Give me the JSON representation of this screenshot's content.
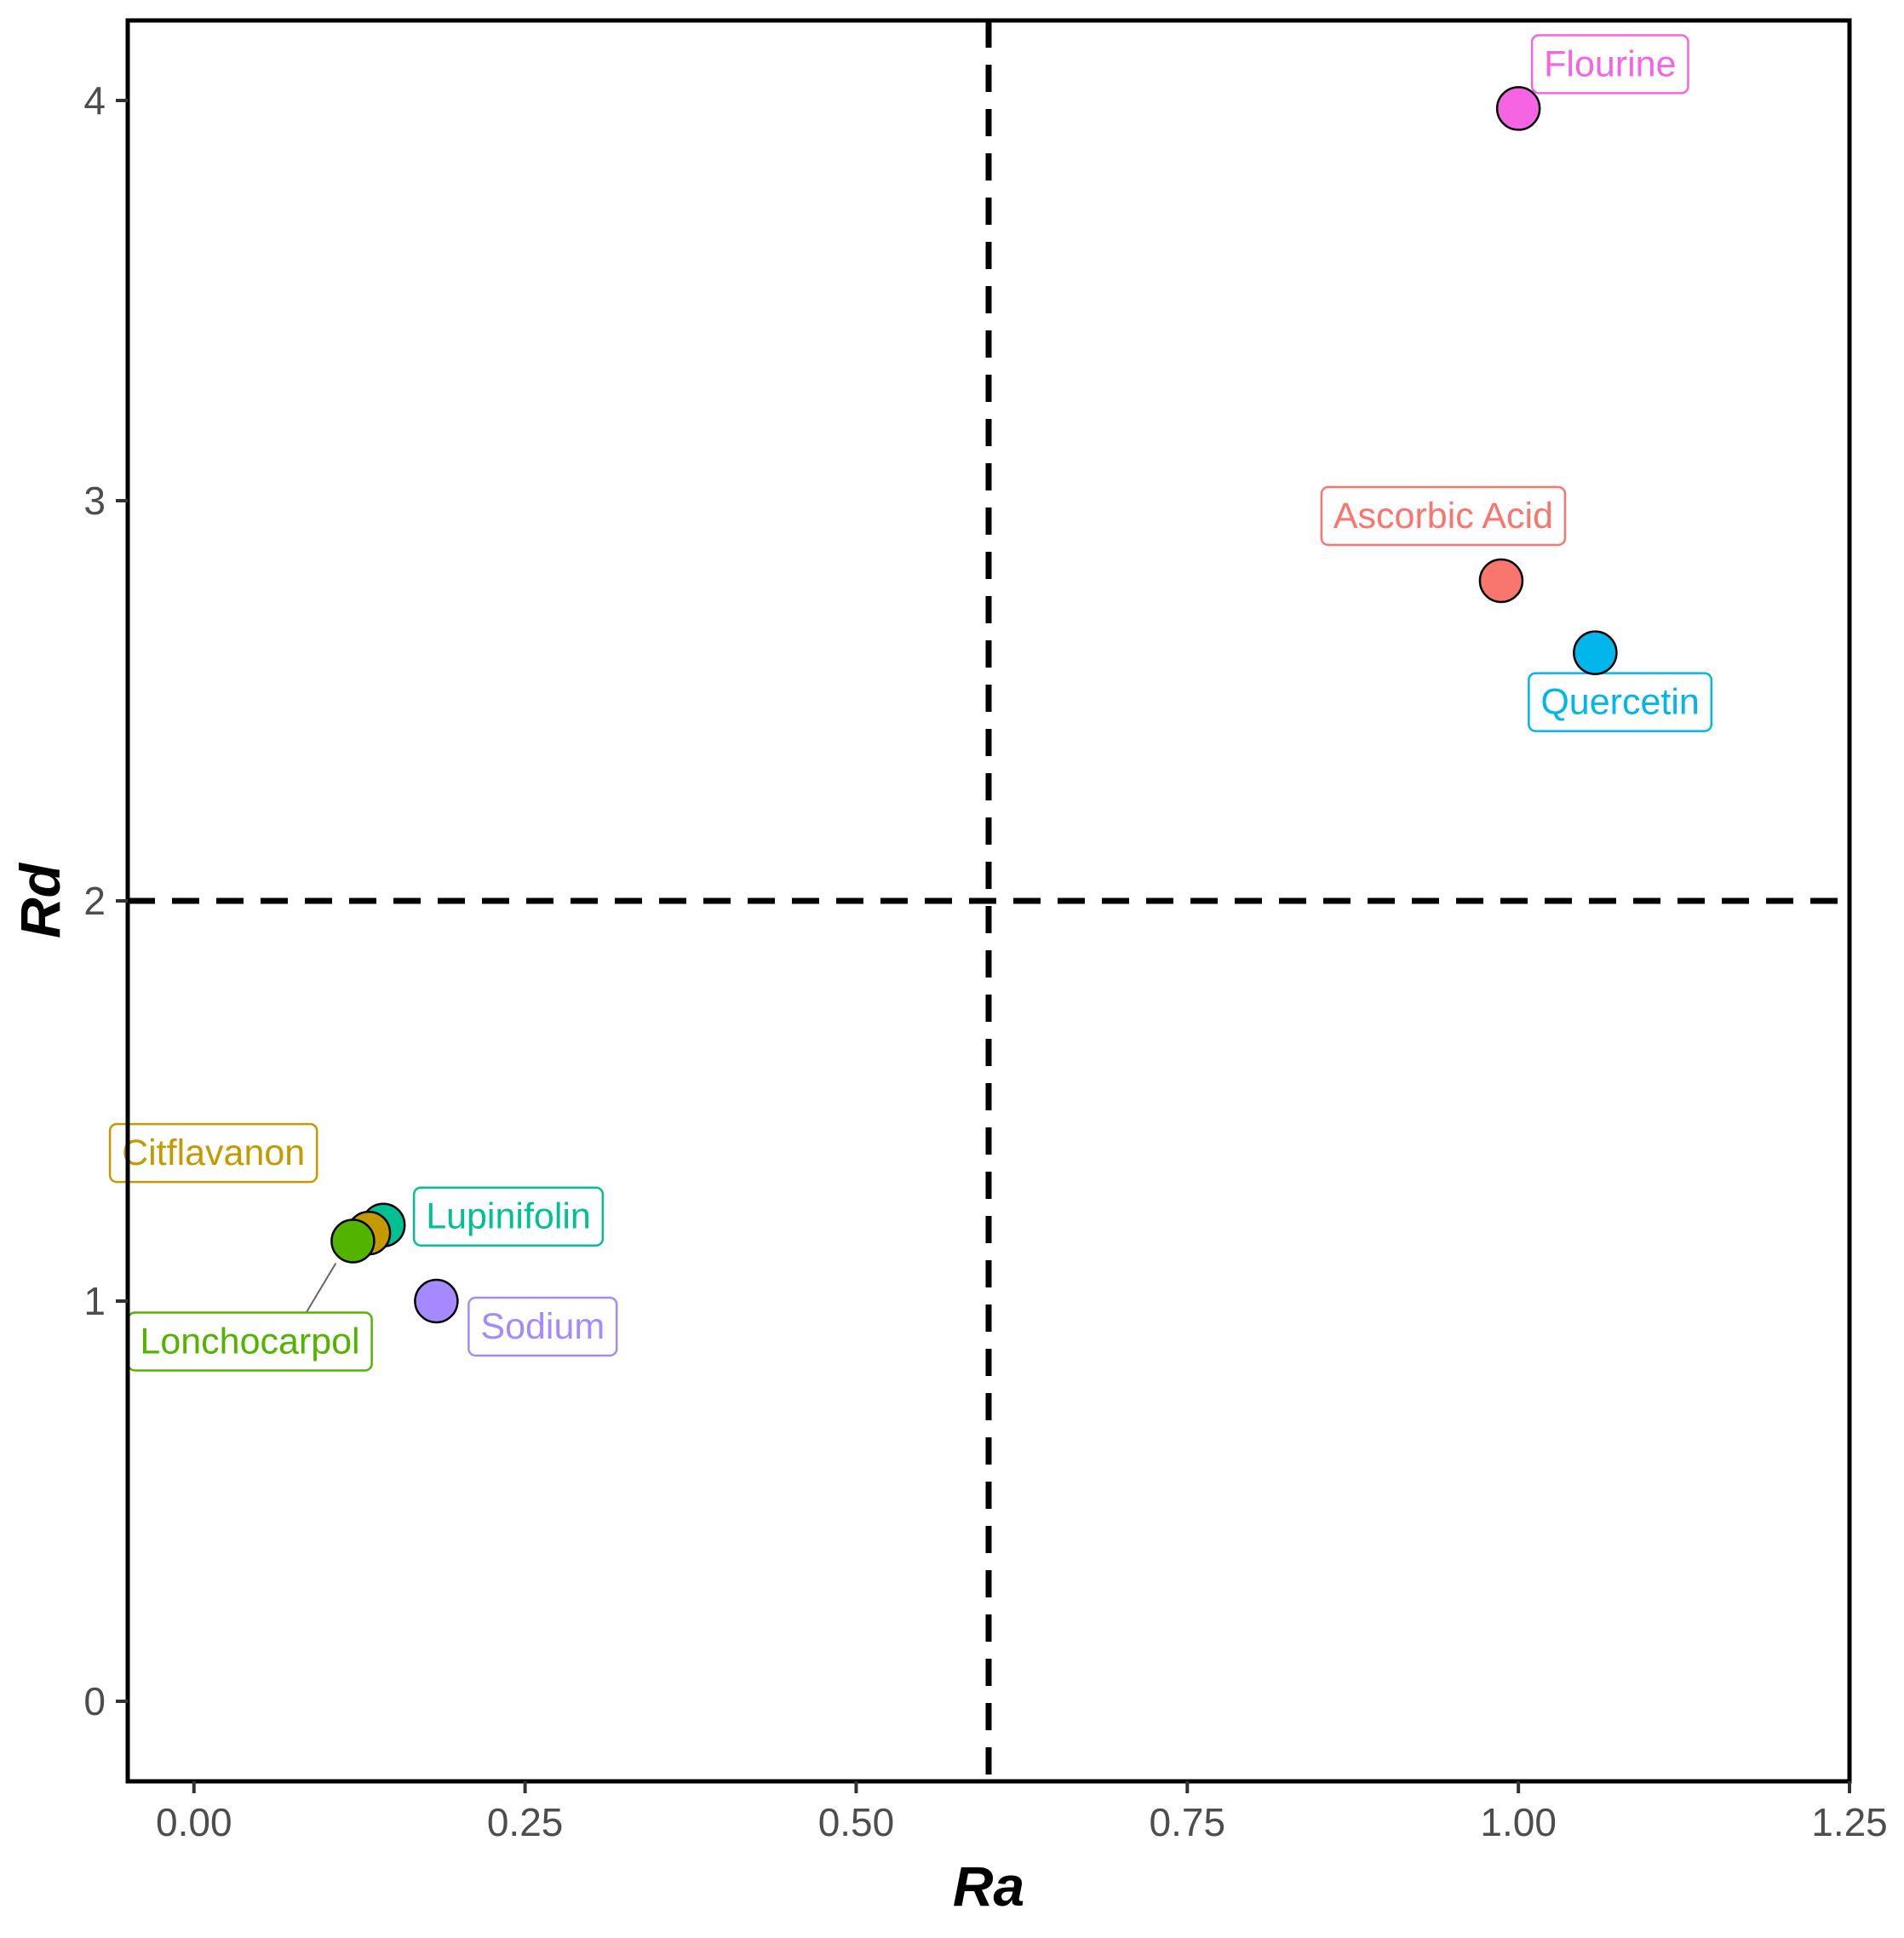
{
  "chart_data": {
    "type": "scatter",
    "title": "",
    "xlabel": "Ra",
    "ylabel": "Rd",
    "xlim": [
      -0.05,
      1.25
    ],
    "ylim": [
      -0.2,
      4.2
    ],
    "x_ticks": [
      0.0,
      0.25,
      0.5,
      0.75,
      1.0,
      1.25
    ],
    "x_tick_labels": [
      "0.00",
      "0.25",
      "0.50",
      "0.75",
      "1.00",
      "1.25"
    ],
    "y_ticks": [
      0,
      1,
      2,
      3,
      4
    ],
    "y_tick_labels": [
      "0",
      "1",
      "2",
      "3",
      "4"
    ],
    "reference_lines": {
      "vertical_x": 0.6,
      "horizontal_y": 2.0,
      "style": "dashed"
    },
    "grid": false,
    "legend": "none",
    "points": [
      {
        "name": "Flourine",
        "x": 1.0,
        "y": 3.98,
        "color": "#F564E3",
        "label_pos": "upper-right"
      },
      {
        "name": "Ascorbic Acid",
        "x": 0.987,
        "y": 2.8,
        "color": "#F8766D",
        "label_pos": "above"
      },
      {
        "name": "Quercetin",
        "x": 1.058,
        "y": 2.62,
        "color": "#00B6EB",
        "label_pos": "below-right"
      },
      {
        "name": "Lupinifolin",
        "x": 0.143,
        "y": 1.19,
        "color": "#00C094",
        "label_pos": "right"
      },
      {
        "name": "Citflavanon",
        "x": 0.132,
        "y": 1.17,
        "color": "#C49A00",
        "label_pos": "upper-left"
      },
      {
        "name": "Lonchocarpol",
        "x": 0.12,
        "y": 1.15,
        "color": "#53B400",
        "label_pos": "below-left"
      },
      {
        "name": "Sodium",
        "x": 0.183,
        "y": 1.0,
        "color": "#A58AFF",
        "label_pos": "below-right"
      }
    ]
  }
}
